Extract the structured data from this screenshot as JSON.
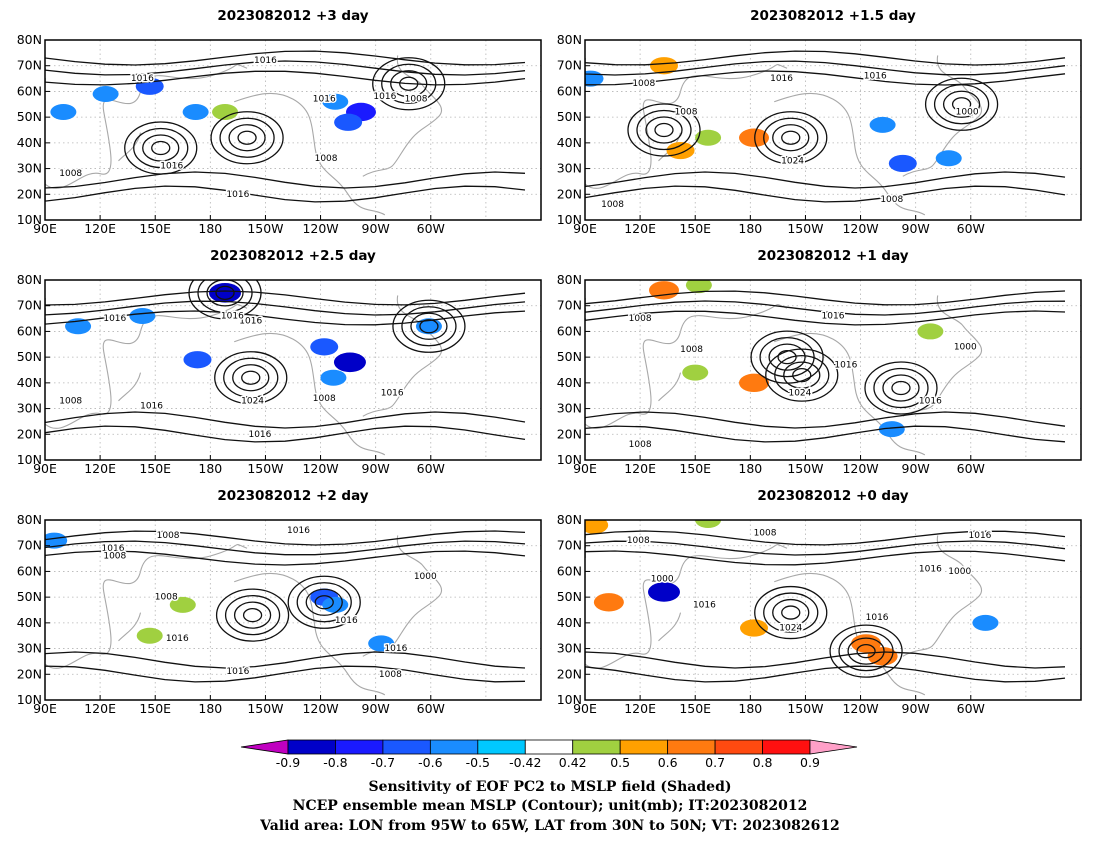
{
  "chart_data": [
    {
      "type": "heatmap",
      "title": "2023082012 +3 day",
      "x_ticks": [
        "90E",
        "120E",
        "150E",
        "180",
        "150W",
        "120W",
        "90W",
        "60W"
      ],
      "y_ticks": [
        "10N",
        "20N",
        "30N",
        "40N",
        "50N",
        "60N",
        "70N",
        "80N"
      ],
      "contour_labels": [
        {
          "text": "1016",
          "lon": -150,
          "lat": 72
        },
        {
          "text": "1016",
          "lon": 143,
          "lat": 65
        },
        {
          "text": "1016",
          "lon": -118,
          "lat": 57
        },
        {
          "text": "1016",
          "lon": -85,
          "lat": 58
        },
        {
          "text": "1008",
          "lon": -68,
          "lat": 57
        },
        {
          "text": "1008",
          "lon": -117,
          "lat": 34
        },
        {
          "text": "1016",
          "lon": 159,
          "lat": 31
        },
        {
          "text": "1016",
          "lon": -165,
          "lat": 20
        },
        {
          "text": "1008",
          "lon": 104,
          "lat": 28
        }
      ],
      "highs": [
        {
          "lon": -160,
          "lat": 42
        },
        {
          "lon": 153,
          "lat": 38
        },
        {
          "lon": -72,
          "lat": 63
        }
      ],
      "shading": [
        {
          "lon": 100,
          "lat": 52,
          "value": -0.5
        },
        {
          "lon": 147,
          "lat": 62,
          "value": -0.6
        },
        {
          "lon": 123,
          "lat": 59,
          "value": -0.5
        },
        {
          "lon": 172,
          "lat": 52,
          "value": -0.5
        },
        {
          "lon": -112,
          "lat": 56,
          "value": -0.5
        },
        {
          "lon": -98,
          "lat": 52,
          "value": -0.7
        },
        {
          "lon": -105,
          "lat": 48,
          "value": -0.6
        },
        {
          "lon": -172,
          "lat": 52,
          "value": 0.5
        }
      ]
    },
    {
      "type": "heatmap",
      "title": "2023082012 +1.5 day",
      "x_ticks": [
        "90E",
        "120E",
        "150E",
        "180",
        "150W",
        "120W",
        "90W",
        "60W"
      ],
      "y_ticks": [
        "10N",
        "20N",
        "30N",
        "40N",
        "50N",
        "60N",
        "70N",
        "80N"
      ],
      "contour_labels": [
        {
          "text": "1008",
          "lon": 122,
          "lat": 63
        },
        {
          "text": "1016",
          "lon": -163,
          "lat": 65
        },
        {
          "text": "1016",
          "lon": -112,
          "lat": 66
        },
        {
          "text": "1008",
          "lon": 145,
          "lat": 52
        },
        {
          "text": "1024",
          "lon": -157,
          "lat": 33
        },
        {
          "text": "1000",
          "lon": -62,
          "lat": 52
        },
        {
          "text": "1008",
          "lon": -103,
          "lat": 18
        },
        {
          "text": "1008",
          "lon": 105,
          "lat": 16
        }
      ],
      "highs": [
        {
          "lon": -158,
          "lat": 42
        },
        {
          "lon": 133,
          "lat": 45
        },
        {
          "lon": -65,
          "lat": 55
        }
      ],
      "shading": [
        {
          "lon": 93,
          "lat": 65,
          "value": -0.5
        },
        {
          "lon": 133,
          "lat": 70,
          "value": 0.6
        },
        {
          "lon": 157,
          "lat": 42,
          "value": 0.5
        },
        {
          "lon": 142,
          "lat": 37,
          "value": 0.6
        },
        {
          "lon": -178,
          "lat": 42,
          "value": 0.7
        },
        {
          "lon": -97,
          "lat": 32,
          "value": -0.6
        },
        {
          "lon": -72,
          "lat": 34,
          "value": -0.5
        },
        {
          "lon": -108,
          "lat": 47,
          "value": -0.5
        }
      ]
    },
    {
      "type": "heatmap",
      "title": "2023082012 +2.5 day",
      "x_ticks": [
        "90E",
        "120E",
        "150E",
        "180",
        "150W",
        "120W",
        "90W",
        "60W"
      ],
      "y_ticks": [
        "10N",
        "20N",
        "30N",
        "40N",
        "50N",
        "60N",
        "70N",
        "80N"
      ],
      "contour_labels": [
        {
          "text": "1016",
          "lon": 128,
          "lat": 65
        },
        {
          "text": "1016",
          "lon": -158,
          "lat": 64
        },
        {
          "text": "1016",
          "lon": -168,
          "lat": 66
        },
        {
          "text": "1008",
          "lon": 104,
          "lat": 33
        },
        {
          "text": "1016",
          "lon": 148,
          "lat": 31
        },
        {
          "text": "1024",
          "lon": -157,
          "lat": 33
        },
        {
          "text": "1008",
          "lon": -118,
          "lat": 34
        },
        {
          "text": "1016",
          "lon": -81,
          "lat": 36
        },
        {
          "text": "1016",
          "lon": -153,
          "lat": 20
        }
      ],
      "highs": [
        {
          "lon": -158,
          "lat": 42
        },
        {
          "lon": -172,
          "lat": 75
        },
        {
          "lon": -61,
          "lat": 62
        }
      ],
      "shading": [
        {
          "lon": 108,
          "lat": 62,
          "value": -0.5
        },
        {
          "lon": 143,
          "lat": 66,
          "value": -0.5
        },
        {
          "lon": -172,
          "lat": 75,
          "value": -0.8
        },
        {
          "lon": 173,
          "lat": 49,
          "value": -0.6
        },
        {
          "lon": -118,
          "lat": 54,
          "value": -0.6
        },
        {
          "lon": -104,
          "lat": 48,
          "value": -0.8
        },
        {
          "lon": -113,
          "lat": 42,
          "value": -0.5
        },
        {
          "lon": -61,
          "lat": 62,
          "value": -0.5
        }
      ]
    },
    {
      "type": "heatmap",
      "title": "2023082012 +1 day",
      "x_ticks": [
        "90E",
        "120E",
        "150E",
        "180",
        "150W",
        "120W",
        "90W",
        "60W"
      ],
      "y_ticks": [
        "10N",
        "20N",
        "30N",
        "40N",
        "50N",
        "60N",
        "70N",
        "80N"
      ],
      "contour_labels": [
        {
          "text": "1008",
          "lon": 120,
          "lat": 65
        },
        {
          "text": "1016",
          "lon": -135,
          "lat": 66
        },
        {
          "text": "1016",
          "lon": -128,
          "lat": 47
        },
        {
          "text": "1008",
          "lon": 148,
          "lat": 53
        },
        {
          "text": "1024",
          "lon": -153,
          "lat": 36
        },
        {
          "text": "1016",
          "lon": -82,
          "lat": 33
        },
        {
          "text": "1000",
          "lon": -63,
          "lat": 54
        },
        {
          "text": "1008",
          "lon": 120,
          "lat": 16
        }
      ],
      "highs": [
        {
          "lon": -152,
          "lat": 43
        },
        {
          "lon": -160,
          "lat": 50
        },
        {
          "lon": -98,
          "lat": 38
        }
      ],
      "shading": [
        {
          "lon": 133,
          "lat": 76,
          "value": 0.7
        },
        {
          "lon": 152,
          "lat": 78,
          "value": 0.5
        },
        {
          "lon": -178,
          "lat": 40,
          "value": 0.7
        },
        {
          "lon": 150,
          "lat": 44,
          "value": 0.5
        },
        {
          "lon": -103,
          "lat": 22,
          "value": -0.5
        },
        {
          "lon": -82,
          "lat": 60,
          "value": 0.5
        }
      ]
    },
    {
      "type": "heatmap",
      "title": "2023082012 +2 day",
      "x_ticks": [
        "90E",
        "120E",
        "150E",
        "180",
        "150W",
        "120W",
        "90W",
        "60W"
      ],
      "y_ticks": [
        "10N",
        "20N",
        "30N",
        "40N",
        "50N",
        "60N",
        "70N",
        "80N"
      ],
      "contour_labels": [
        {
          "text": "1016",
          "lon": -132,
          "lat": 76
        },
        {
          "text": "1016",
          "lon": 127,
          "lat": 69
        },
        {
          "text": "1008",
          "lon": 128,
          "lat": 66
        },
        {
          "text": "1008",
          "lon": 157,
          "lat": 74
        },
        {
          "text": "1008",
          "lon": 156,
          "lat": 50
        },
        {
          "text": "1000",
          "lon": -63,
          "lat": 58
        },
        {
          "text": "1016",
          "lon": 162,
          "lat": 34
        },
        {
          "text": "1016",
          "lon": -106,
          "lat": 41
        },
        {
          "text": "1016",
          "lon": -79,
          "lat": 30
        },
        {
          "text": "1016",
          "lon": -165,
          "lat": 21
        },
        {
          "text": "1008",
          "lon": -82,
          "lat": 20
        }
      ],
      "highs": [
        {
          "lon": -157,
          "lat": 43
        },
        {
          "lon": -118,
          "lat": 48
        }
      ],
      "shading": [
        {
          "lon": 95,
          "lat": 72,
          "value": -0.5
        },
        {
          "lon": -118,
          "lat": 50,
          "value": -0.6
        },
        {
          "lon": -112,
          "lat": 47,
          "value": -0.5
        },
        {
          "lon": -87,
          "lat": 32,
          "value": -0.5
        },
        {
          "lon": 147,
          "lat": 35,
          "value": 0.5
        },
        {
          "lon": 165,
          "lat": 47,
          "value": 0.5
        }
      ]
    },
    {
      "type": "heatmap",
      "title": "2023082012 +0 day",
      "x_ticks": [
        "90E",
        "120E",
        "150E",
        "180",
        "150W",
        "120W",
        "90W",
        "60W"
      ],
      "y_ticks": [
        "10N",
        "20N",
        "30N",
        "40N",
        "50N",
        "60N",
        "70N",
        "80N"
      ],
      "contour_labels": [
        {
          "text": "1008",
          "lon": -172,
          "lat": 75
        },
        {
          "text": "1008",
          "lon": 119,
          "lat": 72
        },
        {
          "text": "1000",
          "lon": 132,
          "lat": 57
        },
        {
          "text": "1016",
          "lon": -82,
          "lat": 61
        },
        {
          "text": "1000",
          "lon": -66,
          "lat": 60
        },
        {
          "text": "1016",
          "lon": -55,
          "lat": 74
        },
        {
          "text": "1016",
          "lon": 155,
          "lat": 47
        },
        {
          "text": "1024",
          "lon": -158,
          "lat": 38
        },
        {
          "text": "1016",
          "lon": -111,
          "lat": 42
        }
      ],
      "highs": [
        {
          "lon": -158,
          "lat": 44
        },
        {
          "lon": -117,
          "lat": 29
        }
      ],
      "shading": [
        {
          "lon": 95,
          "lat": 78,
          "value": 0.6
        },
        {
          "lon": 103,
          "lat": 48,
          "value": 0.7
        },
        {
          "lon": 133,
          "lat": 52,
          "value": -0.8
        },
        {
          "lon": -178,
          "lat": 38,
          "value": 0.6
        },
        {
          "lon": -117,
          "lat": 32,
          "value": 0.7
        },
        {
          "lon": -108,
          "lat": 27,
          "value": 0.7
        },
        {
          "lon": 157,
          "lat": 80,
          "value": 0.5
        },
        {
          "lon": -52,
          "lat": 40,
          "value": -0.5
        }
      ]
    }
  ],
  "colorbar": {
    "labels": [
      "-0.9",
      "-0.8",
      "-0.7",
      "-0.6",
      "-0.5",
      "-0.42",
      "0.42",
      "0.5",
      "0.6",
      "0.7",
      "0.8",
      "0.9"
    ],
    "colors": [
      "#c000c0",
      "#0000c8",
      "#1a1aff",
      "#1a58ff",
      "#1a8cff",
      "#00c8ff",
      "#ffffff",
      "#a0d040",
      "#ffa000",
      "#ff7a10",
      "#ff4a10",
      "#ff1010",
      "#ffa0c8"
    ]
  },
  "caption": {
    "line1": "Sensitivity of EOF PC2 to MSLP field (Shaded)",
    "line2": "NCEP ensemble mean MSLP (Contour); unit(mb); IT:2023082012",
    "line3": "Valid area: LON from 95W to 65W, LAT from 30N to 50N; VT: 2023082612"
  }
}
